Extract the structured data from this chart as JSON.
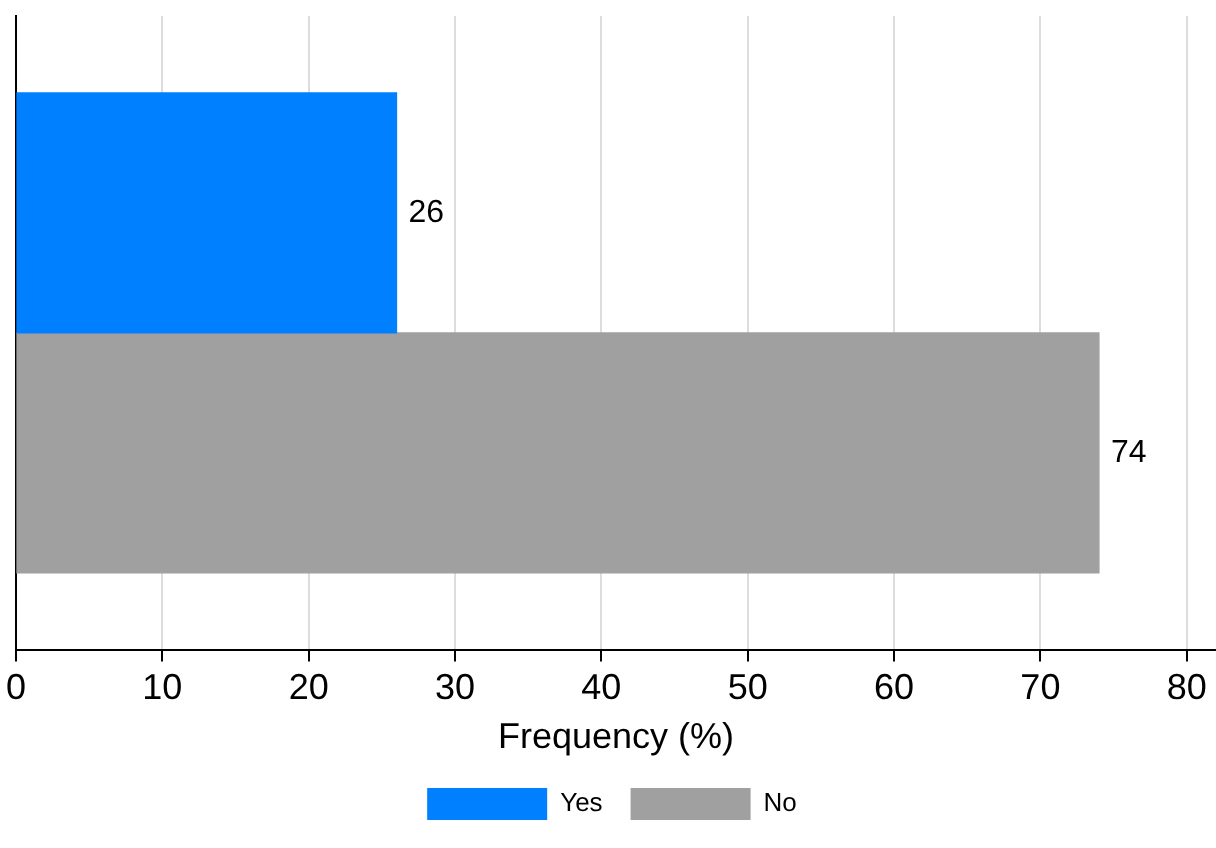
{
  "chart_data": {
    "type": "bar",
    "orientation": "horizontal",
    "categories": [
      null,
      null
    ],
    "series": [
      {
        "name": "Yes",
        "color": "#0080ff",
        "values": [
          26,
          null
        ]
      },
      {
        "name": "No",
        "color": "#a0a0a0",
        "values": [
          null,
          74
        ]
      }
    ],
    "xlabel": "Frequency (%)",
    "xlim": [
      0,
      82
    ],
    "xticks": [
      0,
      10,
      20,
      30,
      40,
      50,
      60,
      70,
      80
    ],
    "grid": "x",
    "legend": "bottom",
    "data_labels": true
  }
}
